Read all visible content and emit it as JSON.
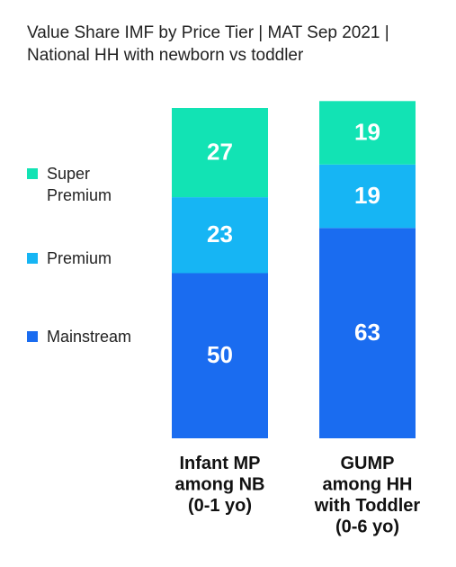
{
  "chart_data": {
    "type": "bar",
    "stacked": true,
    "title_lines": [
      "Value Share IMF by Price Tier | MAT Sep 2021 |",
      "National HH with newborn vs toddler"
    ],
    "categories": [
      [
        "Infant MP",
        "among NB",
        "(0-1 yo)"
      ],
      [
        "GUMP",
        "among HH",
        "with Toddler",
        "(0-6 yo)"
      ]
    ],
    "series": [
      {
        "name": "Mainstream",
        "color": "#1a6cf0",
        "values": [
          50,
          63
        ]
      },
      {
        "name": "Premium",
        "color": "#16b5f4",
        "values": [
          23,
          19
        ]
      },
      {
        "name": "Super Premium",
        "color": "#12e3b4",
        "values": [
          27,
          19
        ]
      }
    ],
    "legend": {
      "placement": "left",
      "items": [
        {
          "lines": [
            "Super",
            "Premium"
          ],
          "color": "#12e3b4"
        },
        {
          "lines": [
            "Premium"
          ],
          "color": "#16b5f4"
        },
        {
          "lines": [
            "Mainstream"
          ],
          "color": "#1a6cf0"
        }
      ]
    },
    "ylim": [
      0,
      100
    ],
    "grid": false,
    "axes_visible": false
  }
}
